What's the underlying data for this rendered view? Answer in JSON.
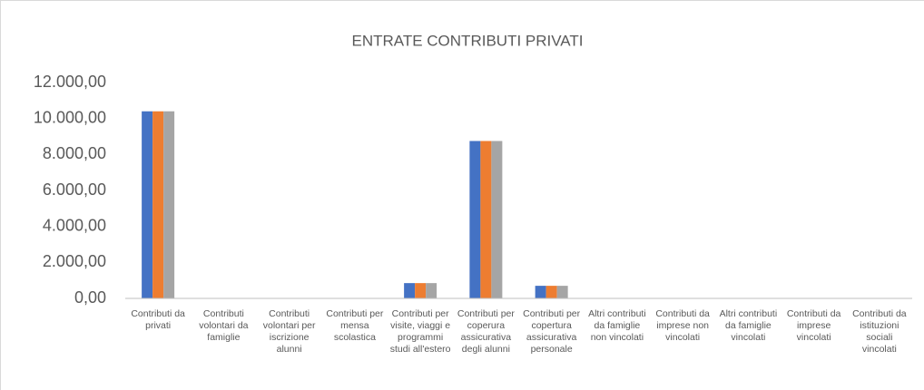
{
  "chart_data": {
    "type": "bar",
    "title": "ENTRATE CONTRIBUTI PRIVATI",
    "categories": [
      "Contributi da privati",
      "Contributi volontari da famiglie",
      "Contributi volontari per iscrizione alunni",
      "Contributi per mensa scolastica",
      "Contributi per visite, viaggi e programmi studi all'estero",
      "Contributi per coperura assicurativa degli alunni",
      "Contributi per copertura assicurativa personale",
      "Altri contributi da famiglie non vincolati",
      "Contributi da imprese non vincolati",
      "Altri contributi da famiglie vincolati",
      "Contributi da imprese vincolati",
      "Contributi da istituzioni sociali vincolati"
    ],
    "series": [
      {
        "color": "#4472c4",
        "values": [
          10400,
          0,
          0,
          0,
          850,
          8750,
          700,
          0,
          0,
          0,
          0,
          0
        ]
      },
      {
        "color": "#ed7d31",
        "values": [
          10400,
          0,
          0,
          0,
          850,
          8750,
          700,
          0,
          0,
          0,
          0,
          0
        ]
      },
      {
        "color": "#a5a5a5",
        "values": [
          10400,
          0,
          0,
          0,
          850,
          8750,
          700,
          0,
          0,
          0,
          0,
          0
        ]
      }
    ],
    "ylim": [
      0,
      12000
    ],
    "yticks": [
      {
        "value": 0,
        "label": "0,00"
      },
      {
        "value": 2000,
        "label": "2.000,00"
      },
      {
        "value": 4000,
        "label": "4.000,00"
      },
      {
        "value": 6000,
        "label": "6.000,00"
      },
      {
        "value": 8000,
        "label": "8.000,00"
      },
      {
        "value": 10000,
        "label": "10.000,00"
      },
      {
        "value": 12000,
        "label": "12.000,00"
      }
    ],
    "grid": false
  }
}
